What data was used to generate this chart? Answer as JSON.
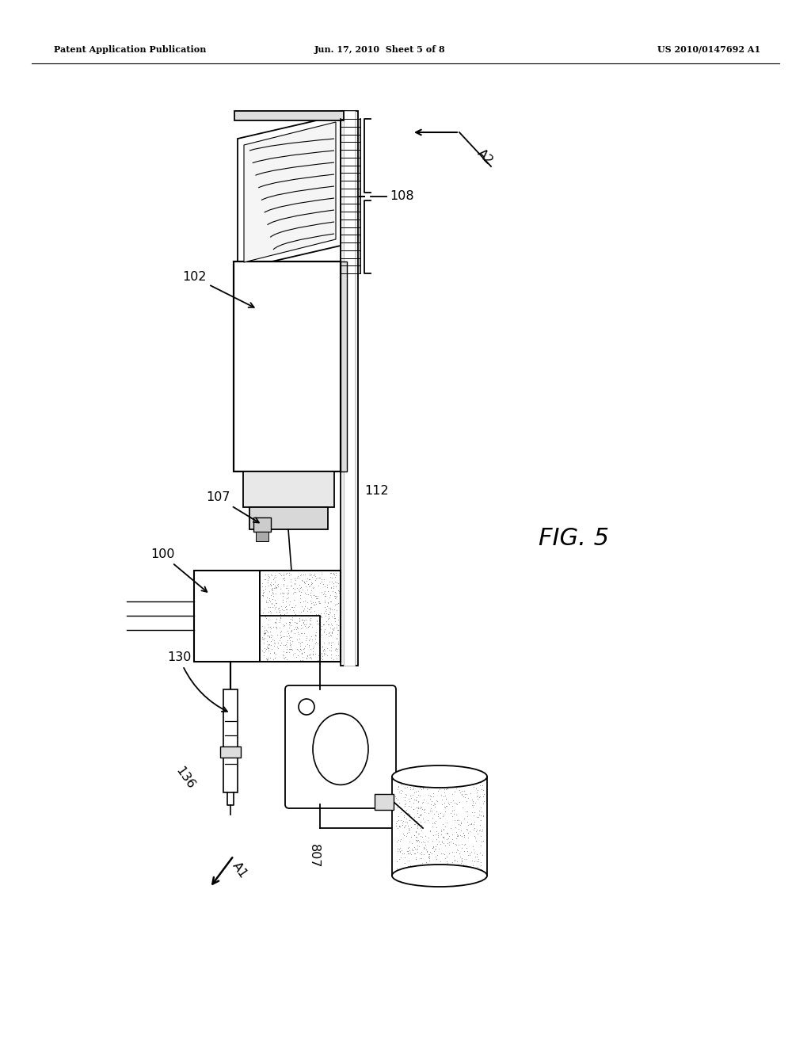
{
  "header_left": "Patent Application Publication",
  "header_mid": "Jun. 17, 2010  Sheet 5 of 8",
  "header_right": "US 2010/0147692 A1",
  "fig_label": "FIG. 5",
  "background": "#ffffff"
}
